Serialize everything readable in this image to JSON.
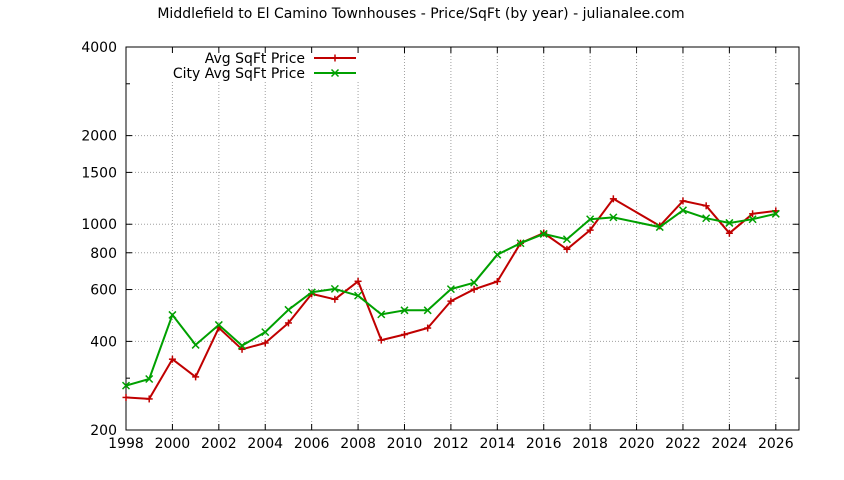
{
  "chart_data": {
    "type": "line",
    "title": "Middlefield to El Camino Townhouses - Price/SqFt (by year) - julianalee.com",
    "xlabel": "",
    "ylabel": "",
    "xlim": [
      1998,
      2027
    ],
    "ylim": [
      200,
      4000
    ],
    "y_scale": "log",
    "grid": true,
    "legend_position": "top-left",
    "x_ticks": [
      1998,
      2000,
      2002,
      2004,
      2006,
      2008,
      2010,
      2012,
      2014,
      2016,
      2018,
      2020,
      2022,
      2024,
      2026
    ],
    "x_tick_labels": [
      "1998",
      "2000",
      "2002",
      "2004",
      "2006",
      "2008",
      "2010",
      "2012",
      "2014",
      "2016",
      "2018",
      "2020",
      "2022",
      "2024",
      "2026"
    ],
    "y_ticks": [
      200,
      400,
      600,
      800,
      1000,
      1500,
      2000,
      4000
    ],
    "y_tick_labels": [
      "200",
      "400",
      "600",
      "800",
      "1000",
      "1500",
      "2000",
      "4000"
    ],
    "y_minor_ticks": [
      300,
      3000
    ],
    "series": [
      {
        "name": "Avg SqFt Price",
        "color": "#c00000",
        "marker": "plus",
        "x": [
          1998,
          1999,
          2000,
          2001,
          2002,
          2003,
          2004,
          2005,
          2006,
          2007,
          2008,
          2009,
          2010,
          2011,
          2012,
          2013,
          2014,
          2015,
          2016,
          2017,
          2018,
          2019,
          2021,
          2022,
          2023,
          2024,
          2025,
          2026
        ],
        "values": [
          258,
          255,
          348,
          303,
          445,
          376,
          395,
          462,
          580,
          556,
          640,
          404,
          422,
          444,
          548,
          601,
          639,
          862,
          934,
          822,
          955,
          1220,
          987,
          1200,
          1155,
          932,
          1085,
          1110
        ]
      },
      {
        "name": "City Avg SqFt Price",
        "color": "#00a000",
        "marker": "x",
        "x": [
          1998,
          1999,
          2000,
          2001,
          2002,
          2003,
          2004,
          2005,
          2006,
          2007,
          2008,
          2009,
          2010,
          2011,
          2012,
          2013,
          2014,
          2015,
          2016,
          2017,
          2018,
          2019,
          2021,
          2022,
          2023,
          2024,
          2025,
          2026
        ],
        "values": [
          283,
          298,
          492,
          389,
          455,
          387,
          430,
          512,
          587,
          603,
          572,
          494,
          510,
          510,
          602,
          633,
          788,
          862,
          927,
          889,
          1040,
          1055,
          978,
          1115,
          1048,
          1010,
          1040,
          1085
        ]
      }
    ]
  }
}
